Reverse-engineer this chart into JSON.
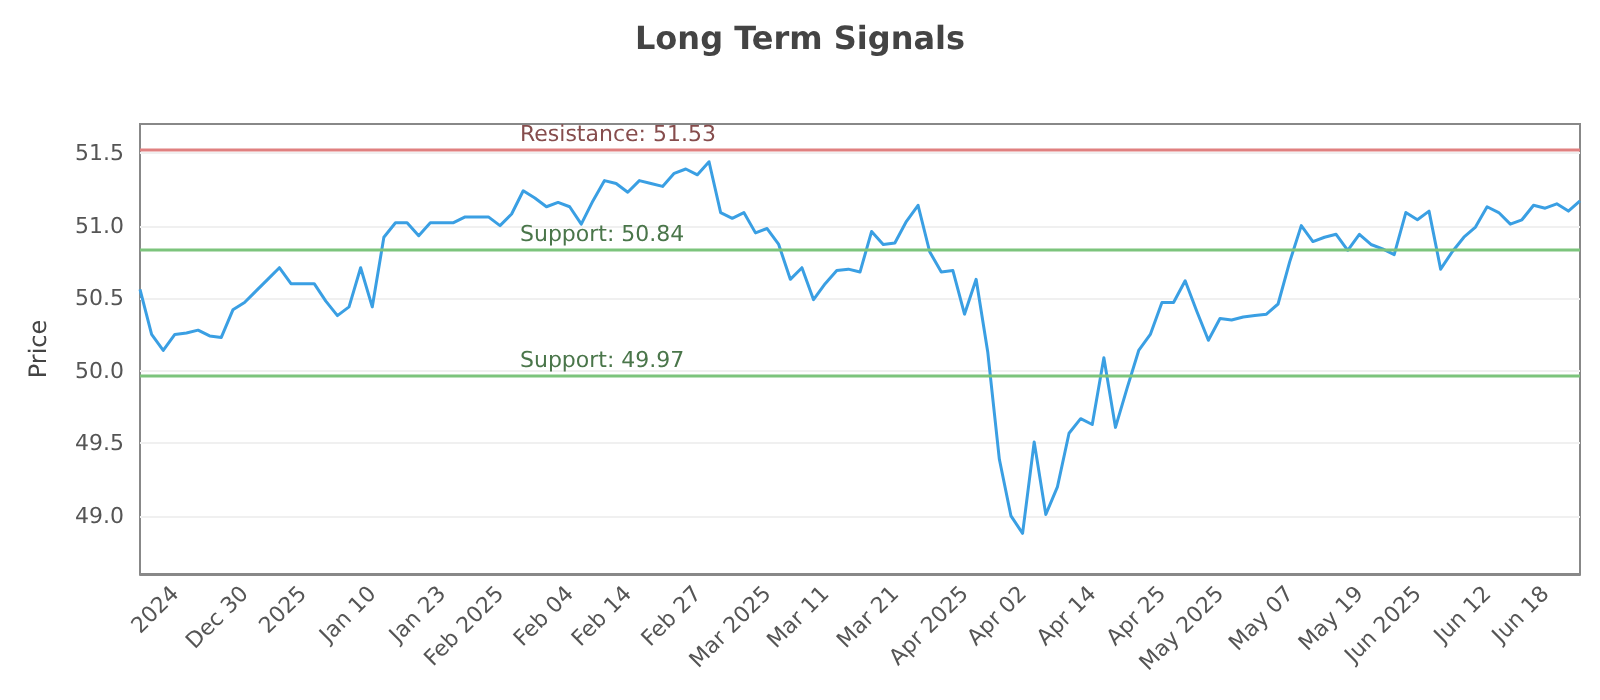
{
  "chart_data": {
    "type": "line",
    "title": "Long Term Signals",
    "ylabel": "Price",
    "categories": [
      null,
      null,
      null,
      "2024",
      null,
      null,
      null,
      null,
      null,
      "Dec 30",
      null,
      null,
      null,
      null,
      "2025",
      null,
      null,
      null,
      null,
      null,
      "Jan 10",
      null,
      null,
      null,
      null,
      null,
      "Jan 23",
      null,
      null,
      null,
      null,
      "Feb 2025",
      null,
      null,
      null,
      null,
      null,
      "Feb 04",
      null,
      null,
      null,
      null,
      "Feb 14",
      null,
      null,
      null,
      null,
      null,
      "Feb 27",
      null,
      null,
      null,
      null,
      null,
      "Mar 2025",
      null,
      null,
      null,
      null,
      "Mar 11",
      null,
      null,
      null,
      null,
      null,
      "Mar 21",
      null,
      null,
      null,
      null,
      null,
      "Apr 2025",
      null,
      null,
      null,
      null,
      "Apr 02",
      null,
      null,
      null,
      null,
      null,
      "Apr 14",
      null,
      null,
      null,
      null,
      null,
      "Apr 25",
      null,
      null,
      null,
      null,
      "May 2025",
      null,
      null,
      null,
      null,
      null,
      "May 07",
      null,
      null,
      null,
      null,
      null,
      "May 19",
      null,
      null,
      null,
      null,
      "Jun 2025",
      null,
      null,
      null,
      null,
      null,
      "Jun 12",
      null,
      null,
      null,
      null,
      "Jun 18",
      null,
      null,
      null
    ],
    "series": [
      {
        "color": "#3a9fe3",
        "values": [
          50.56,
          50.25,
          50.14,
          50.25,
          50.26,
          50.28,
          50.24,
          50.23,
          50.42,
          50.47,
          50.55,
          50.63,
          50.71,
          50.6,
          50.6,
          50.6,
          50.48,
          50.38,
          50.44,
          50.71,
          50.44,
          50.92,
          51.02,
          51.02,
          50.93,
          51.02,
          51.02,
          51.02,
          51.06,
          51.06,
          51.06,
          51.0,
          51.08,
          51.24,
          51.19,
          51.13,
          51.16,
          51.13,
          51.01,
          51.17,
          51.31,
          51.29,
          51.23,
          51.31,
          51.29,
          51.27,
          51.36,
          51.39,
          51.35,
          51.44,
          51.09,
          51.05,
          51.09,
          50.95,
          50.98,
          50.87,
          50.63,
          50.71,
          50.49,
          50.6,
          50.69,
          50.7,
          50.68,
          50.96,
          50.87,
          50.88,
          51.03,
          51.14,
          50.82,
          50.68,
          50.69,
          50.39,
          50.63,
          50.13,
          49.39,
          49.0,
          48.88,
          49.51,
          49.01,
          49.2,
          49.57,
          49.67,
          49.63,
          50.09,
          49.61,
          49.88,
          50.14,
          50.25,
          50.47,
          50.47,
          50.62,
          50.41,
          50.21,
          50.36,
          50.35,
          50.37,
          50.38,
          50.39,
          50.46,
          50.75,
          51.0,
          50.89,
          50.92,
          50.94,
          50.83,
          50.94,
          50.87,
          50.84,
          50.8,
          51.09,
          51.04,
          51.1,
          50.7,
          50.82,
          50.92,
          50.99,
          51.13,
          51.09,
          51.01,
          51.04,
          51.14,
          51.12,
          51.15,
          51.1,
          51.17
        ]
      }
    ],
    "ylim": [
      48.6,
      51.7
    ],
    "yticks": [
      {
        "value": 49,
        "label": "49.0"
      },
      49.5,
      {
        "value": 50,
        "label": "50.0"
      },
      50.5,
      {
        "value": 51,
        "label": "51.0"
      },
      51.5
    ],
    "ref_lines": [
      {
        "axis": "y",
        "value": 51.53,
        "label": "Resistance: 51.53",
        "color": "#e08080"
      },
      {
        "axis": "y",
        "value": 50.84,
        "label": "Support: 50.84",
        "color": "#7cc47c"
      },
      {
        "axis": "y",
        "value": 49.97,
        "label": "Support: 49.97",
        "color": "#7cc47c"
      }
    ],
    "grid": "y",
    "marker": "none",
    "line_style": "solid"
  }
}
